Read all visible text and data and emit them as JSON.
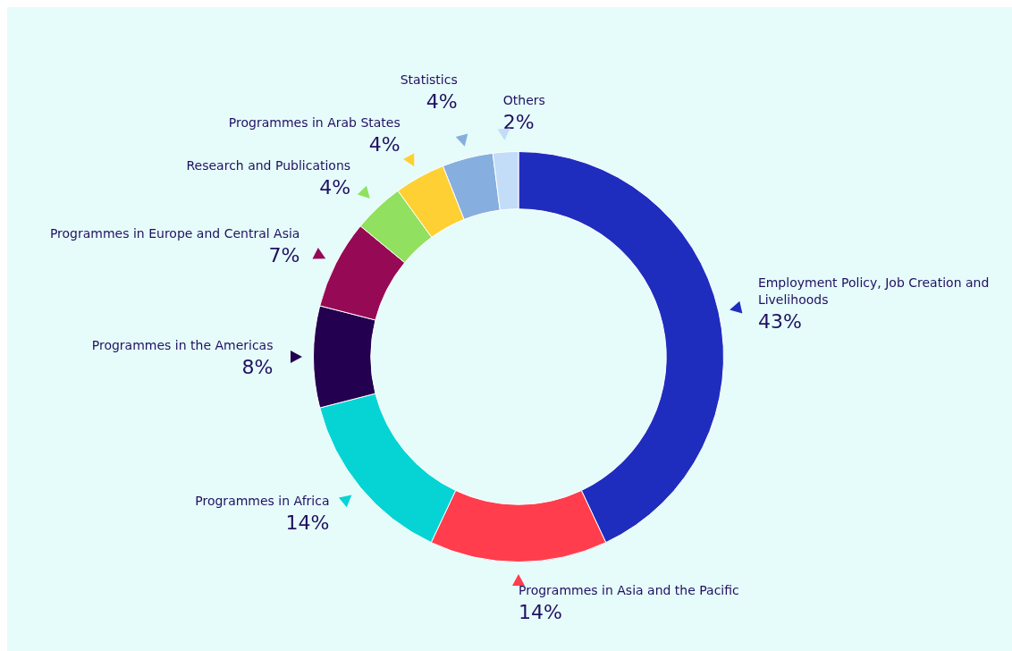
{
  "chart_data": {
    "type": "donut",
    "categories": [
      "Employment Policy, Job Creation and Livelihoods",
      "Programmes in Asia and the Pacific",
      "Programmes in Africa",
      "Programmes in the Americas",
      "Programmes in Europe and Central Asia",
      "Research and Publications",
      "Programmes in Arab States",
      "Statistics",
      "Others"
    ],
    "values": [
      43,
      14,
      14,
      8,
      7,
      4,
      4,
      4,
      2
    ],
    "value_labels": [
      "43%",
      "14%",
      "14%",
      "8%",
      "7%",
      "4%",
      "4%",
      "4%",
      "2%"
    ],
    "colors": [
      "#1f2dbf",
      "#ff3d4d",
      "#06d4d4",
      "#230050",
      "#960a55",
      "#91e05f",
      "#ffd033",
      "#86afdf",
      "#c3dcf7"
    ]
  }
}
